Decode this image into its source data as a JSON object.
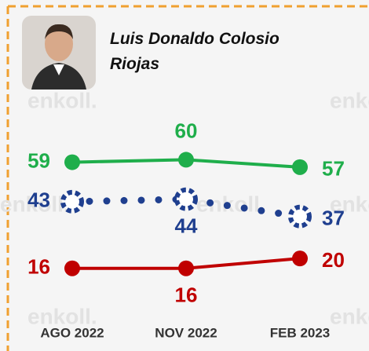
{
  "chart_data": {
    "type": "line",
    "title": "Luis Donaldo Colosio Riojas",
    "watermark": "enkoll.",
    "categories": [
      "AGO 2022",
      "NOV 2022",
      "FEB 2023"
    ],
    "series": [
      {
        "color": "#1fae4b",
        "style": "solid",
        "values": [
          59,
          60,
          57
        ]
      },
      {
        "color": "#1f3f8f",
        "style": "dotted",
        "values": [
          43,
          44,
          37
        ]
      },
      {
        "color": "#c00000",
        "style": "solid",
        "values": [
          16,
          16,
          20
        ]
      }
    ],
    "ylim": [
      0,
      70
    ]
  }
}
